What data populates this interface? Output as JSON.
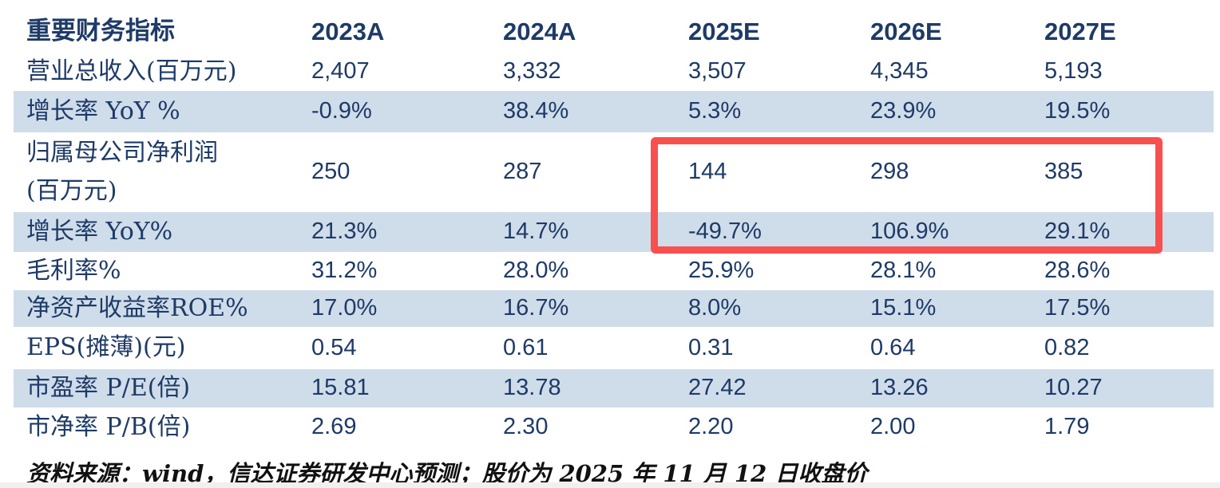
{
  "table": {
    "header": {
      "label": "重要财务指标",
      "columns": [
        "2023A",
        "2024A",
        "2025E",
        "2026E",
        "2027E"
      ]
    },
    "rows": [
      {
        "label": "营业总收入(百万元)",
        "values": [
          "2,407",
          "3,332",
          "3,507",
          "4,345",
          "5,193"
        ],
        "shaded": false,
        "height": "r-h48"
      },
      {
        "label": "增长率 YoY %",
        "values": [
          "-0.9%",
          "38.4%",
          "5.3%",
          "23.9%",
          "19.5%"
        ],
        "shaded": true,
        "height": "r-h52"
      },
      {
        "label": "归属母公司净利润",
        "label_line2": "(百万元)",
        "values": [
          "250",
          "287",
          "144",
          "298",
          "385"
        ],
        "shaded": false,
        "height": ""
      },
      {
        "label": "增长率 YoY%",
        "values": [
          "21.3%",
          "14.7%",
          "-49.7%",
          "106.9%",
          "29.1%"
        ],
        "shaded": true,
        "height": ""
      },
      {
        "label": "毛利率%",
        "values": [
          "31.2%",
          "28.0%",
          "25.9%",
          "28.1%",
          "28.6%"
        ],
        "shaded": false,
        "height": "r-h48"
      },
      {
        "label": "净资产收益率ROE%",
        "values": [
          "17.0%",
          "16.7%",
          "8.0%",
          "15.1%",
          "17.5%"
        ],
        "shaded": true,
        "height": "r-h46"
      },
      {
        "label": "EPS(摊薄)(元)",
        "values": [
          "0.54",
          "0.61",
          "0.31",
          "0.64",
          "0.82"
        ],
        "shaded": false,
        "height": "r-h53"
      },
      {
        "label": "市盈率 P/E(倍)",
        "values": [
          "15.81",
          "13.78",
          "27.42",
          "13.26",
          "10.27"
        ],
        "shaded": true,
        "height": "r-h48"
      },
      {
        "label": "市净率 P/B(倍)",
        "values": [
          "2.69",
          "2.30",
          "2.20",
          "2.00",
          "1.79"
        ],
        "shaded": false,
        "height": ""
      }
    ]
  },
  "highlight": {
    "covers_columns": [
      "2025E",
      "2026E",
      "2027E"
    ],
    "covers_rows": [
      "归属母公司净利润(百万元)",
      "增长率 YoY%"
    ]
  },
  "footer": {
    "source_note": "资料来源：wind，信达证券研发中心预测；股价为 2025 年 11 月 12 日收盘价"
  },
  "colors": {
    "text_navy": "#1e3a66",
    "row_shade": "#cfdcea",
    "highlight_border": "#f8504e",
    "footer_text": "#111111"
  }
}
